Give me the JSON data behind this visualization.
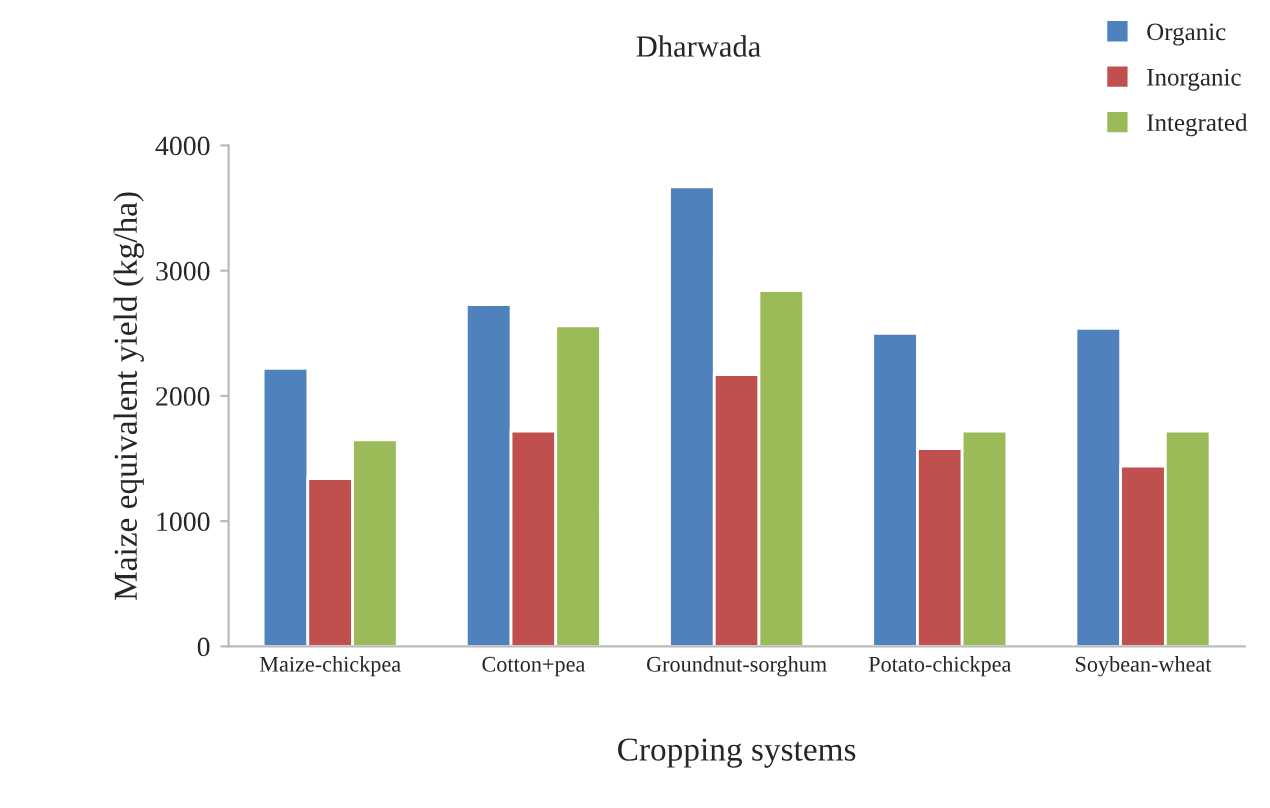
{
  "chart_data": {
    "type": "bar",
    "title": "Dharwada",
    "xlabel": "Cropping systems",
    "ylabel": "Maize equivalent yield (kg/ha)",
    "categories": [
      "Maize-chickpea",
      "Cotton+pea",
      "Groundnut-sorghum",
      "Potato-chickpea",
      "Soybean-wheat"
    ],
    "series": [
      {
        "name": "Organic",
        "color": "#4f81bd",
        "values": [
          2220,
          2730,
          3670,
          2500,
          2540
        ]
      },
      {
        "name": "Inorganic",
        "color": "#c0504d",
        "values": [
          1340,
          1720,
          2170,
          1580,
          1440
        ]
      },
      {
        "name": "Integrated",
        "color": "#9bbb59",
        "values": [
          1650,
          2560,
          2840,
          1720,
          1720
        ]
      }
    ],
    "ylim": [
      0,
      4000
    ],
    "yticks": [
      0,
      1000,
      2000,
      3000,
      4000
    ],
    "grid": false,
    "legend": "top right"
  }
}
